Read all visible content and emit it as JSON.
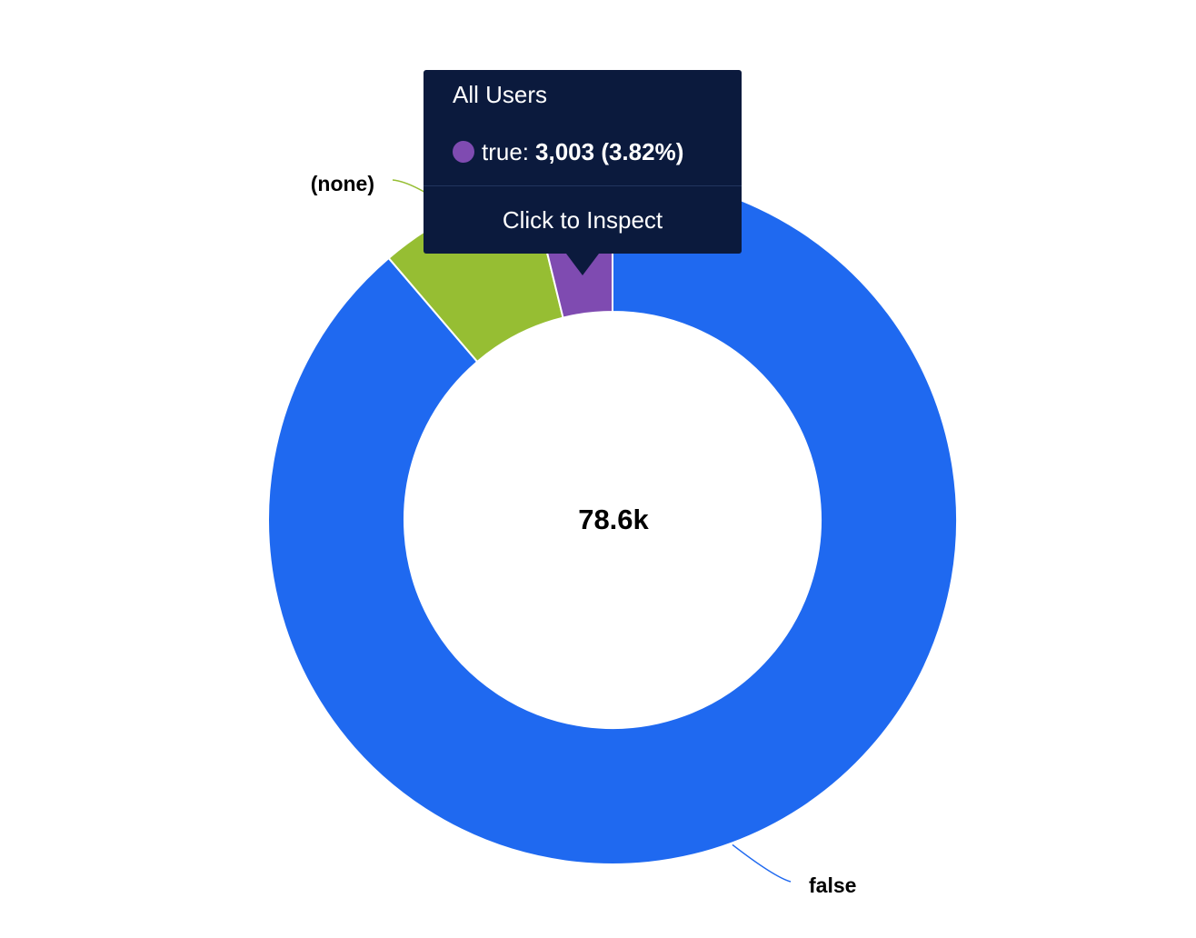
{
  "chart_data": {
    "type": "pie",
    "donut": true,
    "center_total": "78.6k",
    "slices": [
      {
        "name": "false",
        "value": 69750,
        "color": "#1f69f0"
      },
      {
        "name": "(none)",
        "value": 5847,
        "color": "#96be33"
      },
      {
        "name": "true",
        "value": 3003,
        "percent": "3.82%",
        "color": "#7f4bb1"
      }
    ]
  },
  "tooltip": {
    "title": "All Users",
    "series_label": "true:",
    "value_text": "3,003 (3.82%)",
    "dot_color": "#7f4bb1",
    "action_label": "Click to Inspect"
  }
}
